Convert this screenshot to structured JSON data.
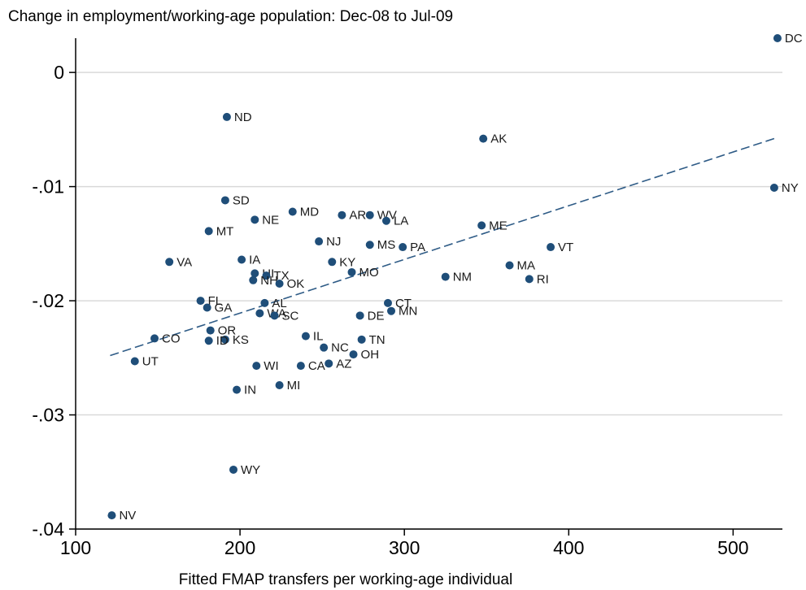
{
  "colors": {
    "marker": "#1f4e79",
    "fit_line": "#2e5b86",
    "grid": "#d9d9d9",
    "axis": "#000000"
  },
  "chart_data": {
    "type": "scatter",
    "title": "Change in employment/working-age population: Dec-08 to Jul-09",
    "xlabel": "Fitted FMAP transfers per working-age individual",
    "ylabel": "",
    "xlim": [
      100,
      530
    ],
    "ylim": [
      -0.04,
      0.003
    ],
    "xticks": [
      100,
      200,
      300,
      400,
      500
    ],
    "xtick_labels": [
      "100",
      "200",
      "300",
      "400",
      "500"
    ],
    "yticks": [
      0,
      -0.01,
      -0.02,
      -0.03,
      -0.04
    ],
    "ytick_labels": [
      "0",
      "-.01",
      "-.02",
      "-.03",
      "-.04"
    ],
    "grid": "horizontal",
    "fit_line": {
      "style": "dashed",
      "x": [
        121,
        527
      ],
      "y": [
        -0.0248,
        -0.0057
      ]
    },
    "points": [
      {
        "label": "DC",
        "x": 527,
        "y": 0.003
      },
      {
        "label": "ND",
        "x": 192,
        "y": -0.0039
      },
      {
        "label": "AK",
        "x": 348,
        "y": -0.0058
      },
      {
        "label": "NY",
        "x": 525,
        "y": -0.0101
      },
      {
        "label": "SD",
        "x": 191,
        "y": -0.0112
      },
      {
        "label": "MD",
        "x": 232,
        "y": -0.0122
      },
      {
        "label": "AR",
        "x": 262,
        "y": -0.0125
      },
      {
        "label": "WV",
        "x": 279,
        "y": -0.0125
      },
      {
        "label": "NE",
        "x": 209,
        "y": -0.0129
      },
      {
        "label": "LA",
        "x": 289,
        "y": -0.013
      },
      {
        "label": "ME",
        "x": 347,
        "y": -0.0134
      },
      {
        "label": "MT",
        "x": 181,
        "y": -0.0139
      },
      {
        "label": "NJ",
        "x": 248,
        "y": -0.0148
      },
      {
        "label": "MS",
        "x": 279,
        "y": -0.0151
      },
      {
        "label": "PA",
        "x": 299,
        "y": -0.0153
      },
      {
        "label": "VT",
        "x": 389,
        "y": -0.0153
      },
      {
        "label": "VA",
        "x": 157,
        "y": -0.0166
      },
      {
        "label": "IA",
        "x": 201,
        "y": -0.0164
      },
      {
        "label": "KY",
        "x": 256,
        "y": -0.0166
      },
      {
        "label": "MA",
        "x": 364,
        "y": -0.0169
      },
      {
        "label": "HI",
        "x": 209,
        "y": -0.0176
      },
      {
        "label": "TX",
        "x": 216,
        "y": -0.0178
      },
      {
        "label": "MO",
        "x": 268,
        "y": -0.0175
      },
      {
        "label": "NM",
        "x": 325,
        "y": -0.0179
      },
      {
        "label": "NH",
        "x": 208,
        "y": -0.0182
      },
      {
        "label": "RI",
        "x": 376,
        "y": -0.0181
      },
      {
        "label": "OK",
        "x": 224,
        "y": -0.0185
      },
      {
        "label": "FL",
        "x": 176,
        "y": -0.02
      },
      {
        "label": "AL",
        "x": 215,
        "y": -0.0202
      },
      {
        "label": "CT",
        "x": 290,
        "y": -0.0202
      },
      {
        "label": "GA",
        "x": 180,
        "y": -0.0206
      },
      {
        "label": "MN",
        "x": 292,
        "y": -0.0209
      },
      {
        "label": "WA",
        "x": 212,
        "y": -0.0211
      },
      {
        "label": "SC",
        "x": 221,
        "y": -0.0213
      },
      {
        "label": "DE",
        "x": 273,
        "y": -0.0213
      },
      {
        "label": "OR",
        "x": 182,
        "y": -0.0226
      },
      {
        "label": "CO",
        "x": 148,
        "y": -0.0233
      },
      {
        "label": "KS",
        "x": 191,
        "y": -0.0234
      },
      {
        "label": "IL",
        "x": 240,
        "y": -0.0231
      },
      {
        "label": "TN",
        "x": 274,
        "y": -0.0234
      },
      {
        "label": "ID",
        "x": 181,
        "y": -0.0235
      },
      {
        "label": "NC",
        "x": 251,
        "y": -0.0241
      },
      {
        "label": "OH",
        "x": 269,
        "y": -0.0247
      },
      {
        "label": "UT",
        "x": 136,
        "y": -0.0253
      },
      {
        "label": "AZ",
        "x": 254,
        "y": -0.0255
      },
      {
        "label": "WI",
        "x": 210,
        "y": -0.0257
      },
      {
        "label": "CA",
        "x": 237,
        "y": -0.0257
      },
      {
        "label": "MI",
        "x": 224,
        "y": -0.0274
      },
      {
        "label": "IN",
        "x": 198,
        "y": -0.0278
      },
      {
        "label": "WY",
        "x": 196,
        "y": -0.0348
      },
      {
        "label": "NV",
        "x": 122,
        "y": -0.0388
      }
    ]
  }
}
